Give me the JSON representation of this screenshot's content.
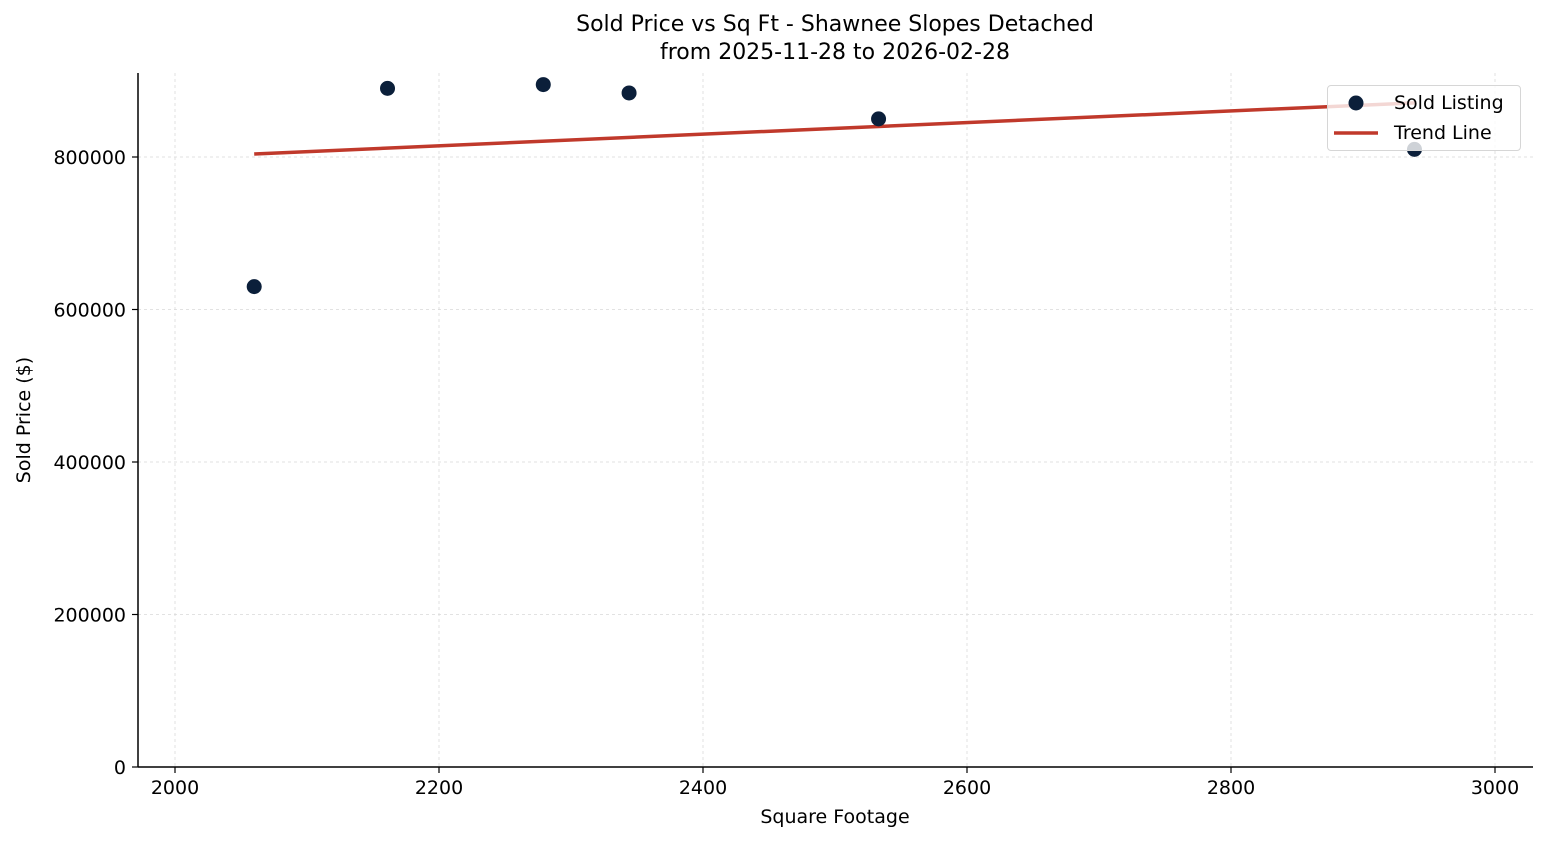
{
  "chart_data": {
    "type": "scatter",
    "title": "Sold Price vs Sq Ft - Shawnee Slopes Detached",
    "subtitle": "from 2025-11-28 to 2026-02-28",
    "xlabel": "Square Footage",
    "ylabel": "Sold Price ($)",
    "xlim": [
      1972,
      3028
    ],
    "ylim": [
      0,
      910000
    ],
    "xticks": [
      2000,
      2200,
      2400,
      2600,
      2800,
      3000
    ],
    "yticks": [
      0,
      200000,
      400000,
      600000,
      800000
    ],
    "grid": true,
    "legend_position": "upper right",
    "series": [
      {
        "name": "Sold Listing",
        "kind": "scatter",
        "color": "#0b1f3a",
        "points": [
          {
            "x": 2060,
            "y": 630000
          },
          {
            "x": 2161,
            "y": 890000
          },
          {
            "x": 2279,
            "y": 895000
          },
          {
            "x": 2344,
            "y": 884000
          },
          {
            "x": 2533,
            "y": 850000
          },
          {
            "x": 2939,
            "y": 810000
          }
        ]
      },
      {
        "name": "Trend Line",
        "kind": "line",
        "color": "#c0392b",
        "points": [
          {
            "x": 2060,
            "y": 804000
          },
          {
            "x": 2939,
            "y": 871000
          }
        ]
      }
    ]
  },
  "title_line1": "Sold Price vs Sq Ft - Shawnee Slopes Detached",
  "title_line2": "from 2025-11-28 to 2026-02-28",
  "legend": {
    "scatter_label": "Sold Listing",
    "line_label": "Trend Line"
  },
  "axes": {
    "xlabel": "Square Footage",
    "ylabel": "Sold Price ($)"
  }
}
